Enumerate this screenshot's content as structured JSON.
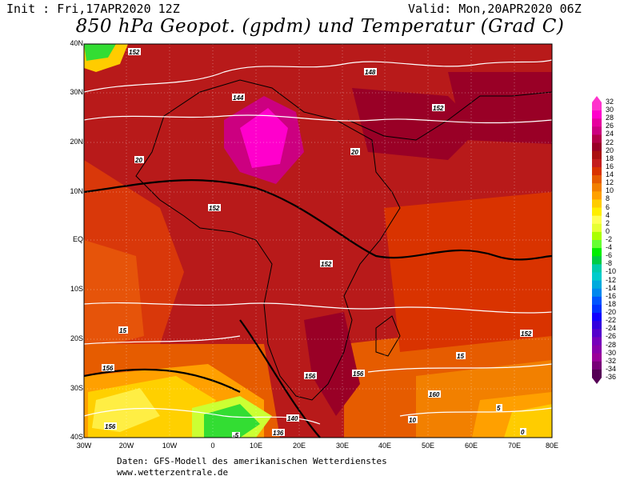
{
  "header": {
    "init": "Init : Fri,17APR2020 12Z",
    "valid": "Valid: Mon,20APR2020 06Z",
    "title": "850 hPa Geopot. (gpdm) und Temperatur (Grad C)"
  },
  "map": {
    "region": "Africa",
    "lon_range": [
      -30,
      80
    ],
    "lat_range": [
      -40,
      40
    ],
    "lat_labels": [
      "40N",
      "30N",
      "20N",
      "10N",
      "EQ",
      "10S",
      "20S",
      "30S",
      "40S"
    ],
    "lon_labels": [
      "30W",
      "20W",
      "10W",
      "0",
      "10E",
      "20E",
      "30E",
      "40E",
      "50E",
      "60E",
      "70E",
      "80E"
    ],
    "contour_labels": [
      "152",
      "156",
      "148",
      "144",
      "140",
      "160",
      "136",
      "20",
      "15",
      "10",
      "5",
      "0",
      "-5"
    ]
  },
  "colorbar": {
    "labels": [
      "32",
      "30",
      "28",
      "26",
      "24",
      "22",
      "20",
      "18",
      "16",
      "14",
      "12",
      "10",
      "8",
      "6",
      "4",
      "2",
      "0",
      "-2",
      "-4",
      "-6",
      "-8",
      "-10",
      "-12",
      "-14",
      "-16",
      "-18",
      "-20",
      "-22",
      "-24",
      "-26",
      "-28",
      "-30",
      "-32",
      "-34",
      "-36"
    ],
    "colors": [
      "#ff33cc",
      "#ff00cc",
      "#e6009e",
      "#cc0080",
      "#b30047",
      "#990026",
      "#aa1111",
      "#c41e1e",
      "#d93300",
      "#e65c00",
      "#f28000",
      "#ffa000",
      "#ffcc00",
      "#ffee00",
      "#ffff55",
      "#e6ff33",
      "#aaff00",
      "#66ff33",
      "#00ee00",
      "#00cc44",
      "#00ccaa",
      "#00cccc",
      "#00aadd",
      "#0088ee",
      "#0055ff",
      "#0033ff",
      "#1100ff",
      "#3300dd",
      "#5500cc",
      "#7700bb",
      "#8800aa",
      "#990099",
      "#770077",
      "#550055"
    ]
  },
  "footer": {
    "line1": "Daten: GFS-Modell des amerikanischen Wetterdienstes",
    "line2": "www.wetterzentrale.de"
  }
}
